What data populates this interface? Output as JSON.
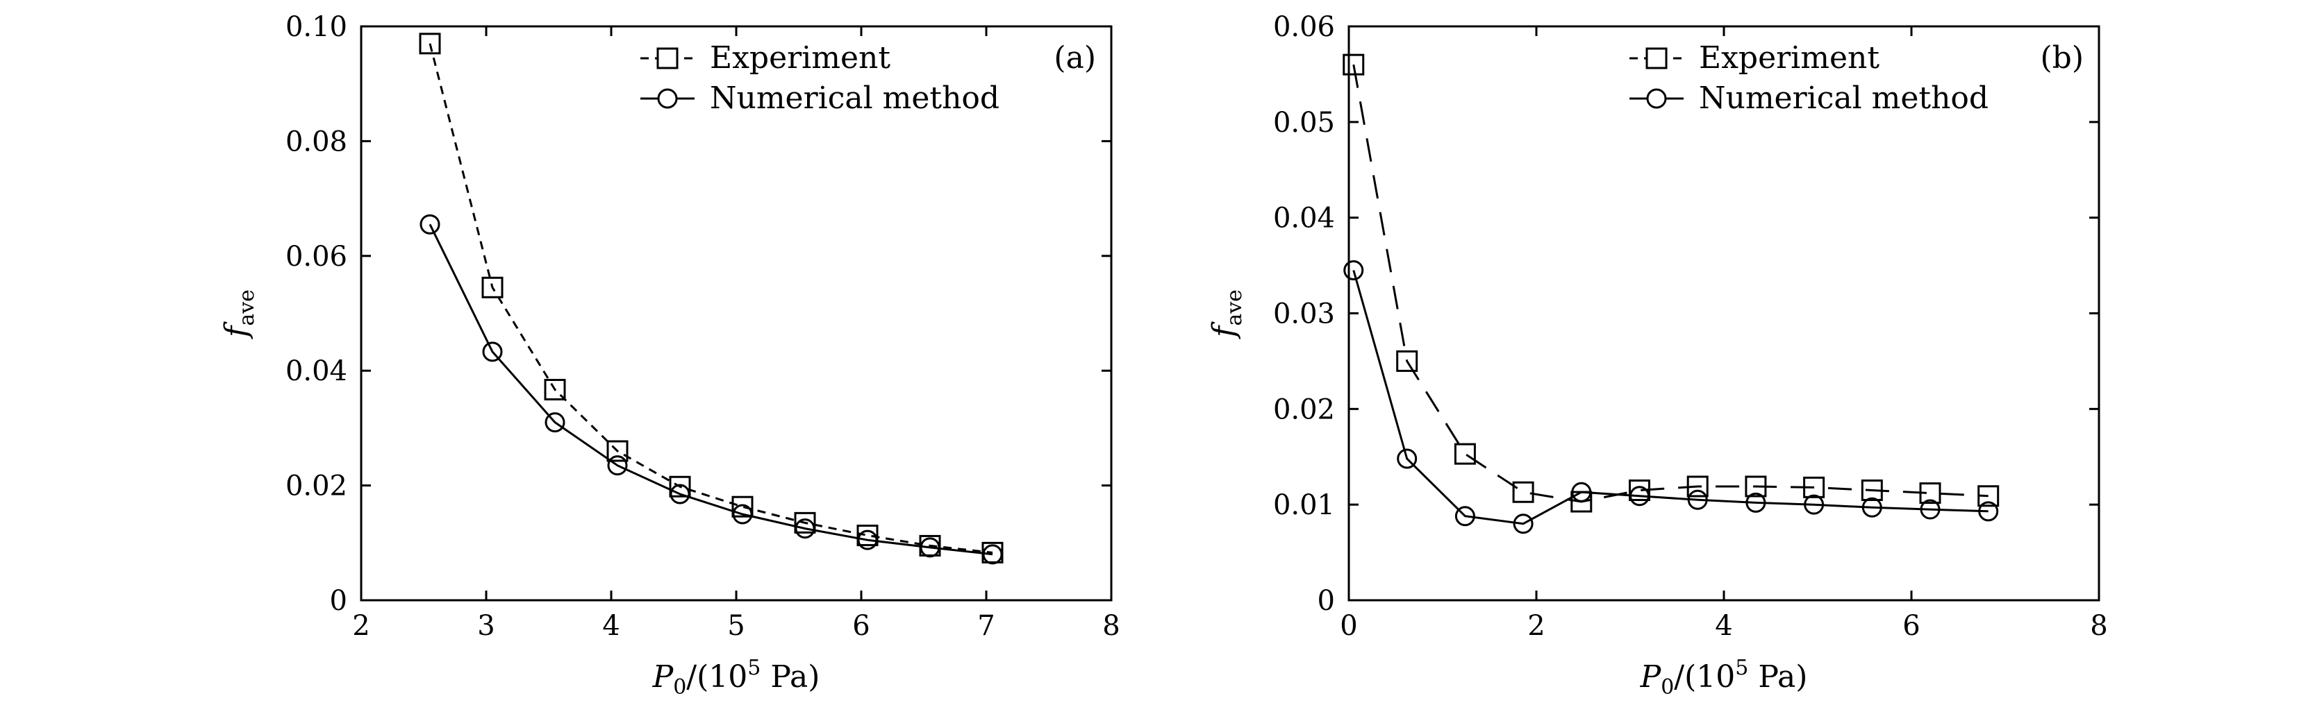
{
  "chart_data": [
    {
      "type": "line",
      "panel_label": "(a)",
      "xlabel": {
        "main": "P",
        "sub": "0",
        "mid": "/(10",
        "sup": "5",
        "end": " Pa)"
      },
      "ylabel": {
        "main": "f",
        "sub": "ave"
      },
      "xlim": [
        2,
        8
      ],
      "ylim": [
        0,
        0.1
      ],
      "xticks": [
        2,
        3,
        4,
        5,
        6,
        7,
        8
      ],
      "xtick_labels": [
        "2",
        "3",
        "4",
        "5",
        "6",
        "7",
        "8"
      ],
      "yticks": [
        0,
        0.02,
        0.04,
        0.06,
        0.08,
        0.1
      ],
      "ytick_labels": [
        "0",
        "0.02",
        "0.04",
        "0.06",
        "0.08",
        "0.10"
      ],
      "grid": false,
      "legend_position": "top-center",
      "series": [
        {
          "name": "Experiment",
          "marker": "square",
          "line_style": "short-dash",
          "x": [
            2.55,
            3.05,
            3.55,
            4.05,
            4.55,
            5.05,
            5.55,
            6.05,
            6.55,
            7.05
          ],
          "y": [
            0.097,
            0.0545,
            0.0367,
            0.026,
            0.0198,
            0.0163,
            0.0135,
            0.0113,
            0.0095,
            0.0083
          ]
        },
        {
          "name": "Numerical method",
          "marker": "circle",
          "line_style": "solid",
          "x": [
            2.55,
            3.05,
            3.55,
            4.05,
            4.55,
            5.05,
            5.55,
            6.05,
            6.55,
            7.05
          ],
          "y": [
            0.0655,
            0.0433,
            0.031,
            0.0235,
            0.0185,
            0.015,
            0.0125,
            0.0105,
            0.0092,
            0.008
          ]
        }
      ]
    },
    {
      "type": "line",
      "panel_label": "(b)",
      "xlabel": {
        "main": "P",
        "sub": "0",
        "mid": "/(10",
        "sup": "5",
        "end": " Pa)"
      },
      "ylabel": {
        "main": "f",
        "sub": "ave"
      },
      "xlim": [
        0,
        8
      ],
      "ylim": [
        0,
        0.06
      ],
      "xticks": [
        0,
        2,
        4,
        6,
        8
      ],
      "xtick_labels": [
        "0",
        "2",
        "4",
        "6",
        "8"
      ],
      "yticks": [
        0,
        0.01,
        0.02,
        0.03,
        0.04,
        0.05,
        0.06
      ],
      "ytick_labels": [
        "0",
        "0.01",
        "0.02",
        "0.03",
        "0.04",
        "0.05",
        "0.06"
      ],
      "grid": false,
      "legend_position": "top-center",
      "series": [
        {
          "name": "Experiment",
          "marker": "square",
          "line_style": "long-dash",
          "x": [
            0.05,
            0.62,
            1.24,
            1.86,
            2.48,
            3.1,
            3.72,
            4.34,
            4.96,
            5.58,
            6.2,
            6.82
          ],
          "y": [
            0.056,
            0.025,
            0.0153,
            0.0113,
            0.0103,
            0.0115,
            0.0119,
            0.0119,
            0.0118,
            0.0115,
            0.0112,
            0.0109
          ]
        },
        {
          "name": "Numerical method",
          "marker": "circle",
          "line_style": "solid",
          "x": [
            0.05,
            0.62,
            1.24,
            1.86,
            2.48,
            3.1,
            3.72,
            4.34,
            4.96,
            5.58,
            6.2,
            6.82
          ],
          "y": [
            0.0345,
            0.0148,
            0.0088,
            0.008,
            0.0113,
            0.0109,
            0.0105,
            0.0102,
            0.01,
            0.0097,
            0.0095,
            0.0093
          ]
        }
      ]
    }
  ]
}
